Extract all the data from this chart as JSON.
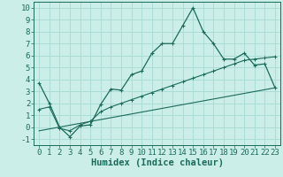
{
  "title": "",
  "xlabel": "Humidex (Indice chaleur)",
  "ylabel": "",
  "bg_color": "#cceee8",
  "grid_color": "#aaddd6",
  "line_color": "#1a6b5a",
  "xlim": [
    -0.5,
    23.5
  ],
  "ylim": [
    -1.5,
    10.5
  ],
  "xticks": [
    0,
    1,
    2,
    3,
    4,
    5,
    6,
    7,
    8,
    9,
    10,
    11,
    12,
    13,
    14,
    15,
    16,
    17,
    18,
    19,
    20,
    21,
    22,
    23
  ],
  "yticks": [
    -1,
    0,
    1,
    2,
    3,
    4,
    5,
    6,
    7,
    8,
    9,
    10
  ],
  "main_x": [
    0,
    1,
    2,
    3,
    4,
    5,
    6,
    7,
    8,
    9,
    10,
    11,
    12,
    13,
    14,
    15,
    16,
    17,
    18,
    19,
    20,
    21,
    22,
    23
  ],
  "main_y": [
    3.7,
    2.0,
    0.0,
    -0.8,
    0.1,
    0.2,
    1.9,
    3.2,
    3.1,
    4.4,
    4.7,
    6.2,
    7.0,
    7.0,
    8.5,
    10.0,
    8.0,
    7.0,
    5.7,
    5.7,
    6.2,
    5.2,
    5.3,
    3.3
  ],
  "line2_x": [
    0,
    1,
    2,
    3,
    4,
    5,
    6,
    7,
    8,
    9,
    10,
    11,
    12,
    13,
    14,
    15,
    16,
    17,
    18,
    19,
    20,
    21,
    22,
    23
  ],
  "line2_y": [
    1.5,
    1.7,
    -0.1,
    -0.3,
    0.2,
    0.5,
    1.3,
    1.7,
    2.0,
    2.3,
    2.6,
    2.9,
    3.2,
    3.5,
    3.8,
    4.1,
    4.4,
    4.7,
    5.0,
    5.3,
    5.6,
    5.7,
    5.8,
    5.9
  ],
  "line3_x": [
    0,
    23
  ],
  "line3_y": [
    -0.3,
    3.3
  ],
  "xlabel_fontsize": 7.5,
  "tick_fontsize": 6.5
}
